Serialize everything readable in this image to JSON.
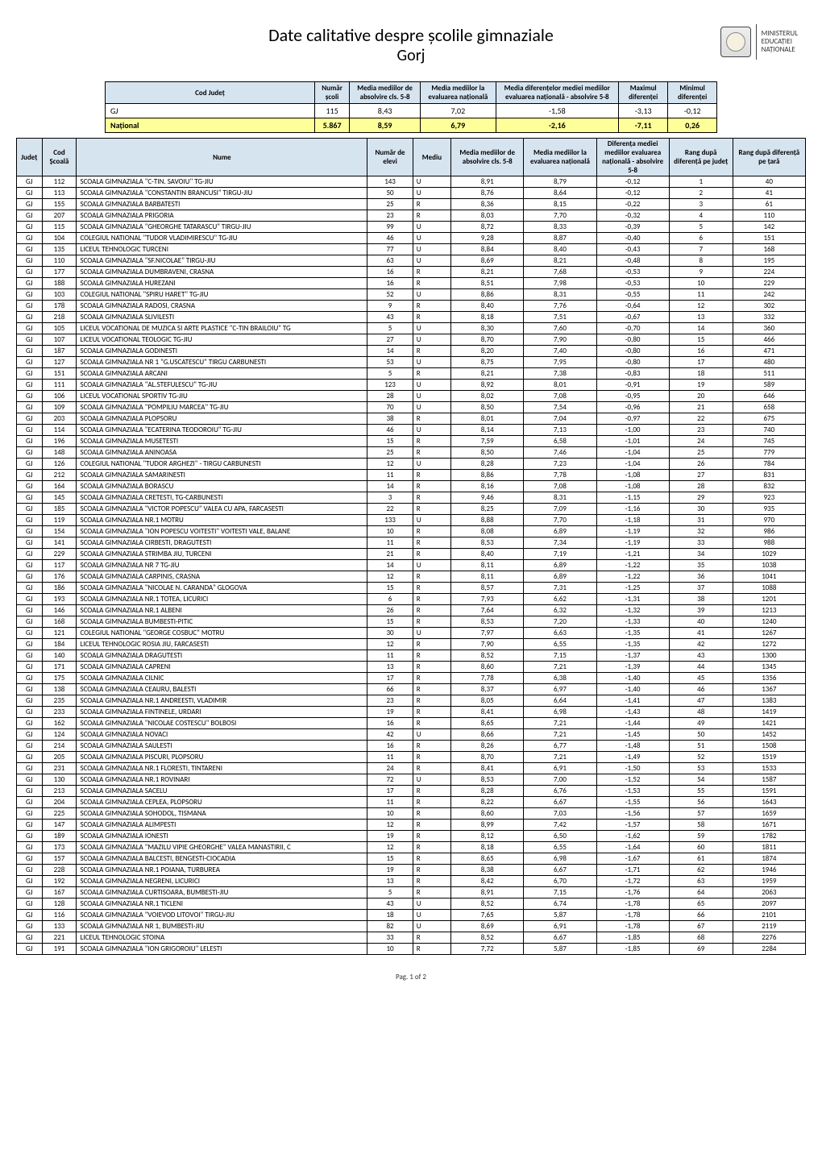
{
  "header": {
    "title": "Date calitative despre școlile gimnaziale",
    "subtitle": "Gorj",
    "ministry_line1": "MINISTERUL",
    "ministry_line2": "EDUCAȚIEI",
    "ministry_line3": "NAȚIONALE"
  },
  "summary": {
    "columns": {
      "cod_judet": "Cod Județ",
      "numar_scoli": "Număr școli",
      "media_abs": "Media mediilor de absolvire cls. 5-8",
      "media_eval": "Media mediilor la evaluarea națională",
      "media_dif": "Media diferențelor mediei mediilor evaluarea națională - absolvire 5-8",
      "max_dif": "Maximul diferenței",
      "min_dif": "Minimul diferenței"
    },
    "rows": [
      {
        "cod": "GJ",
        "scoli": "115",
        "abs": "8,43",
        "eval": "7,02",
        "dif": "-1,58",
        "max": "-3,13",
        "min": "-0,12",
        "hl": false
      },
      {
        "cod": "Național",
        "scoli": "5.867",
        "abs": "8,59",
        "eval": "6,79",
        "dif": "-2,16",
        "max": "-7,11",
        "min": "0,26",
        "hl": true
      }
    ]
  },
  "data": {
    "columns": {
      "judet": "Județ",
      "cod": "Cod Școală",
      "nume": "Nume",
      "elevi": "Număr de elevi",
      "mediu": "Mediu",
      "m_abs": "Media mediilor de absolvire cls. 5-8",
      "m_eval": "Media mediilor la evaluarea națională",
      "dif": "Diferența mediei mediilor evaluarea națională - absolvire 5-8",
      "rang_j": "Rang după diferență pe județ",
      "rang_t": "Rang după diferență pe țară"
    },
    "rows": [
      {
        "j": "GJ",
        "c": "112",
        "n": "SCOALA GIMNAZIALA \"C-TIN. SAVOIU\" TG-JIU",
        "e": "143",
        "m": "U",
        "a": "8,91",
        "v": "8,79",
        "d": "-0,12",
        "rj": "1",
        "rt": "40"
      },
      {
        "j": "GJ",
        "c": "113",
        "n": "SCOALA GIMNAZIALA \"CONSTANTIN BRANCUSI\" TIRGU-JIU",
        "e": "50",
        "m": "U",
        "a": "8,76",
        "v": "8,64",
        "d": "-0,12",
        "rj": "2",
        "rt": "41"
      },
      {
        "j": "GJ",
        "c": "155",
        "n": "SCOALA GIMNAZIALA BARBATESTI",
        "e": "25",
        "m": "R",
        "a": "8,36",
        "v": "8,15",
        "d": "-0,22",
        "rj": "3",
        "rt": "61"
      },
      {
        "j": "GJ",
        "c": "207",
        "n": "SCOALA GIMNAZIALA PRIGORIA",
        "e": "23",
        "m": "R",
        "a": "8,03",
        "v": "7,70",
        "d": "-0,32",
        "rj": "4",
        "rt": "110"
      },
      {
        "j": "GJ",
        "c": "115",
        "n": "SCOALA GIMNAZIALA \"GHEORGHE TATARASCU\" TIRGU-JIU",
        "e": "99",
        "m": "U",
        "a": "8,72",
        "v": "8,33",
        "d": "-0,39",
        "rj": "5",
        "rt": "142"
      },
      {
        "j": "GJ",
        "c": "104",
        "n": "COLEGIUL NATIONAL \"TUDOR VLADIMIRESCU\" TG-JIU",
        "e": "46",
        "m": "U",
        "a": "9,28",
        "v": "8,87",
        "d": "-0,40",
        "rj": "6",
        "rt": "151"
      },
      {
        "j": "GJ",
        "c": "135",
        "n": "LICEUL TEHNOLOGIC TURCENI",
        "e": "77",
        "m": "U",
        "a": "8,84",
        "v": "8,40",
        "d": "-0,43",
        "rj": "7",
        "rt": "168"
      },
      {
        "j": "GJ",
        "c": "110",
        "n": "SCOALA GIMNAZIALA \"SF.NICOLAE\" TIRGU-JIU",
        "e": "63",
        "m": "U",
        "a": "8,69",
        "v": "8,21",
        "d": "-0,48",
        "rj": "8",
        "rt": "195"
      },
      {
        "j": "GJ",
        "c": "177",
        "n": "SCOALA GIMNAZIALA DUMBRAVENI, CRASNA",
        "e": "16",
        "m": "R",
        "a": "8,21",
        "v": "7,68",
        "d": "-0,53",
        "rj": "9",
        "rt": "224"
      },
      {
        "j": "GJ",
        "c": "188",
        "n": "SCOALA GIMNAZIALA HUREZANI",
        "e": "16",
        "m": "R",
        "a": "8,51",
        "v": "7,98",
        "d": "-0,53",
        "rj": "10",
        "rt": "229"
      },
      {
        "j": "GJ",
        "c": "103",
        "n": "COLEGIUL NATIONAL \"SPIRU HARET\" TG-JIU",
        "e": "52",
        "m": "U",
        "a": "8,86",
        "v": "8,31",
        "d": "-0,55",
        "rj": "11",
        "rt": "242"
      },
      {
        "j": "GJ",
        "c": "178",
        "n": "SCOALA GIMNAZIALA RADOSI, CRASNA",
        "e": "9",
        "m": "R",
        "a": "8,40",
        "v": "7,76",
        "d": "-0,64",
        "rj": "12",
        "rt": "302"
      },
      {
        "j": "GJ",
        "c": "218",
        "n": "SCOALA GIMNAZIALA SLIVILESTI",
        "e": "43",
        "m": "R",
        "a": "8,18",
        "v": "7,51",
        "d": "-0,67",
        "rj": "13",
        "rt": "332"
      },
      {
        "j": "GJ",
        "c": "105",
        "n": "LICEUL VOCATIONAL DE MUZICA SI ARTE PLASTICE \"C-TIN BRAILOIU\" TG",
        "e": "5",
        "m": "U",
        "a": "8,30",
        "v": "7,60",
        "d": "-0,70",
        "rj": "14",
        "rt": "360"
      },
      {
        "j": "GJ",
        "c": "107",
        "n": "LICEUL VOCATIONAL TEOLOGIC TG-JIU",
        "e": "27",
        "m": "U",
        "a": "8,70",
        "v": "7,90",
        "d": "-0,80",
        "rj": "15",
        "rt": "466"
      },
      {
        "j": "GJ",
        "c": "187",
        "n": "SCOALA GIMNAZIALA GODINESTI",
        "e": "14",
        "m": "R",
        "a": "8,20",
        "v": "7,40",
        "d": "-0,80",
        "rj": "16",
        "rt": "471"
      },
      {
        "j": "GJ",
        "c": "127",
        "n": "SCOALA GIMNAZIALA NR 1 \"G.USCATESCU\" TIRGU CARBUNESTI",
        "e": "53",
        "m": "U",
        "a": "8,75",
        "v": "7,95",
        "d": "-0,80",
        "rj": "17",
        "rt": "480"
      },
      {
        "j": "GJ",
        "c": "151",
        "n": "SCOALA GIMNAZIALA ARCANI",
        "e": "5",
        "m": "R",
        "a": "8,21",
        "v": "7,38",
        "d": "-0,83",
        "rj": "18",
        "rt": "511"
      },
      {
        "j": "GJ",
        "c": "111",
        "n": "SCOALA GIMNAZIALA \"AL.STEFULESCU\" TG-JIU",
        "e": "123",
        "m": "U",
        "a": "8,92",
        "v": "8,01",
        "d": "-0,91",
        "rj": "19",
        "rt": "589"
      },
      {
        "j": "GJ",
        "c": "106",
        "n": "LICEUL VOCATIONAL SPORTIV TG-JIU",
        "e": "28",
        "m": "U",
        "a": "8,02",
        "v": "7,08",
        "d": "-0,95",
        "rj": "20",
        "rt": "646"
      },
      {
        "j": "GJ",
        "c": "109",
        "n": "SCOALA GIMNAZIALA \"POMPILIU MARCEA\" TG-JIU",
        "e": "70",
        "m": "U",
        "a": "8,50",
        "v": "7,54",
        "d": "-0,96",
        "rj": "21",
        "rt": "658"
      },
      {
        "j": "GJ",
        "c": "203",
        "n": "SCOALA GIMNAZIALA PLOPSORU",
        "e": "38",
        "m": "R",
        "a": "8,01",
        "v": "7,04",
        "d": "-0,97",
        "rj": "22",
        "rt": "675"
      },
      {
        "j": "GJ",
        "c": "114",
        "n": "SCOALA GIMNAZIALA \"ECATERINA TEODOROIU\" TG-JIU",
        "e": "46",
        "m": "U",
        "a": "8,14",
        "v": "7,13",
        "d": "-1,00",
        "rj": "23",
        "rt": "740"
      },
      {
        "j": "GJ",
        "c": "196",
        "n": "SCOALA GIMNAZIALA MUSETESTI",
        "e": "15",
        "m": "R",
        "a": "7,59",
        "v": "6,58",
        "d": "-1,01",
        "rj": "24",
        "rt": "745"
      },
      {
        "j": "GJ",
        "c": "148",
        "n": "SCOALA GIMNAZIALA ANINOASA",
        "e": "25",
        "m": "R",
        "a": "8,50",
        "v": "7,46",
        "d": "-1,04",
        "rj": "25",
        "rt": "779"
      },
      {
        "j": "GJ",
        "c": "126",
        "n": "COLEGIUL NATIONAL \"TUDOR ARGHEZI\" - TIRGU CARBUNESTI",
        "e": "12",
        "m": "U",
        "a": "8,28",
        "v": "7,23",
        "d": "-1,04",
        "rj": "26",
        "rt": "784"
      },
      {
        "j": "GJ",
        "c": "212",
        "n": "SCOALA GIMNAZIALA SAMARINESTI",
        "e": "11",
        "m": "R",
        "a": "8,86",
        "v": "7,78",
        "d": "-1,08",
        "rj": "27",
        "rt": "831"
      },
      {
        "j": "GJ",
        "c": "164",
        "n": "SCOALA GIMNAZIALA BORASCU",
        "e": "14",
        "m": "R",
        "a": "8,16",
        "v": "7,08",
        "d": "-1,08",
        "rj": "28",
        "rt": "832"
      },
      {
        "j": "GJ",
        "c": "145",
        "n": "SCOALA GIMNAZIALA CRETESTI, TG-CARBUNESTI",
        "e": "3",
        "m": "R",
        "a": "9,46",
        "v": "8,31",
        "d": "-1,15",
        "rj": "29",
        "rt": "923"
      },
      {
        "j": "GJ",
        "c": "185",
        "n": "SCOALA GIMNAZIALA \"VICTOR POPESCU\" VALEA CU APA, FARCASESTI",
        "e": "22",
        "m": "R",
        "a": "8,25",
        "v": "7,09",
        "d": "-1,16",
        "rj": "30",
        "rt": "935"
      },
      {
        "j": "GJ",
        "c": "119",
        "n": "SCOALA GIMNAZIALA NR.1 MOTRU",
        "e": "133",
        "m": "U",
        "a": "8,88",
        "v": "7,70",
        "d": "-1,18",
        "rj": "31",
        "rt": "970"
      },
      {
        "j": "GJ",
        "c": "154",
        "n": "SCOALA GIMNAZIALA \"ION POPESCU VOITESTI\" VOITESTI VALE, BALANE",
        "e": "10",
        "m": "R",
        "a": "8,08",
        "v": "6,89",
        "d": "-1,19",
        "rj": "32",
        "rt": "986"
      },
      {
        "j": "GJ",
        "c": "141",
        "n": "SCOALA GIMNAZIALA CIRBESTI, DRAGUTESTI",
        "e": "11",
        "m": "R",
        "a": "8,53",
        "v": "7,34",
        "d": "-1,19",
        "rj": "33",
        "rt": "988"
      },
      {
        "j": "GJ",
        "c": "229",
        "n": "SCOALA GIMNAZIALA STRIMBA JIU, TURCENI",
        "e": "21",
        "m": "R",
        "a": "8,40",
        "v": "7,19",
        "d": "-1,21",
        "rj": "34",
        "rt": "1029"
      },
      {
        "j": "GJ",
        "c": "117",
        "n": "SCOALA GIMNAZIALA NR 7 TG-JIU",
        "e": "14",
        "m": "U",
        "a": "8,11",
        "v": "6,89",
        "d": "-1,22",
        "rj": "35",
        "rt": "1038"
      },
      {
        "j": "GJ",
        "c": "176",
        "n": "SCOALA GIMNAZIALA CARPINIS, CRASNA",
        "e": "12",
        "m": "R",
        "a": "8,11",
        "v": "6,89",
        "d": "-1,22",
        "rj": "36",
        "rt": "1041"
      },
      {
        "j": "GJ",
        "c": "186",
        "n": "SCOALA GIMNAZIALA \"NICOLAE N. CARANDA\" GLOGOVA",
        "e": "15",
        "m": "R",
        "a": "8,57",
        "v": "7,31",
        "d": "-1,25",
        "rj": "37",
        "rt": "1088"
      },
      {
        "j": "GJ",
        "c": "193",
        "n": "SCOALA GIMNAZIALA NR.1 TOTEA, LICURICI",
        "e": "6",
        "m": "R",
        "a": "7,93",
        "v": "6,62",
        "d": "-1,31",
        "rj": "38",
        "rt": "1201"
      },
      {
        "j": "GJ",
        "c": "146",
        "n": "SCOALA GIMNAZIALA NR.1 ALBENI",
        "e": "26",
        "m": "R",
        "a": "7,64",
        "v": "6,32",
        "d": "-1,32",
        "rj": "39",
        "rt": "1213"
      },
      {
        "j": "GJ",
        "c": "168",
        "n": "SCOALA GIMNAZIALA BUMBESTI-PITIC",
        "e": "15",
        "m": "R",
        "a": "8,53",
        "v": "7,20",
        "d": "-1,33",
        "rj": "40",
        "rt": "1240"
      },
      {
        "j": "GJ",
        "c": "121",
        "n": "COLEGIUL NATIONAL \"GEORGE COSBUC\" MOTRU",
        "e": "30",
        "m": "U",
        "a": "7,97",
        "v": "6,63",
        "d": "-1,35",
        "rj": "41",
        "rt": "1267"
      },
      {
        "j": "GJ",
        "c": "184",
        "n": "LICEUL TEHNOLOGIC ROSIA JIU, FARCASESTI",
        "e": "12",
        "m": "R",
        "a": "7,90",
        "v": "6,55",
        "d": "-1,35",
        "rj": "42",
        "rt": "1272"
      },
      {
        "j": "GJ",
        "c": "140",
        "n": "SCOALA GIMNAZIALA DRAGUTESTI",
        "e": "11",
        "m": "R",
        "a": "8,52",
        "v": "7,15",
        "d": "-1,37",
        "rj": "43",
        "rt": "1300"
      },
      {
        "j": "GJ",
        "c": "171",
        "n": "SCOALA GIMNAZIALA CAPRENI",
        "e": "13",
        "m": "R",
        "a": "8,60",
        "v": "7,21",
        "d": "-1,39",
        "rj": "44",
        "rt": "1345"
      },
      {
        "j": "GJ",
        "c": "175",
        "n": "SCOALA GIMNAZIALA CILNIC",
        "e": "17",
        "m": "R",
        "a": "7,78",
        "v": "6,38",
        "d": "-1,40",
        "rj": "45",
        "rt": "1356"
      },
      {
        "j": "GJ",
        "c": "138",
        "n": "SCOALA GIMNAZIALA CEAURU, BALESTI",
        "e": "66",
        "m": "R",
        "a": "8,37",
        "v": "6,97",
        "d": "-1,40",
        "rj": "46",
        "rt": "1367"
      },
      {
        "j": "GJ",
        "c": "235",
        "n": "SCOALA GIMNAZIALA NR.1 ANDREESTI, VLADIMIR",
        "e": "23",
        "m": "R",
        "a": "8,05",
        "v": "6,64",
        "d": "-1,41",
        "rj": "47",
        "rt": "1383"
      },
      {
        "j": "GJ",
        "c": "233",
        "n": "SCOALA GIMNAZIALA FINTINELE, URDARI",
        "e": "19",
        "m": "R",
        "a": "8,41",
        "v": "6,98",
        "d": "-1,43",
        "rj": "48",
        "rt": "1419"
      },
      {
        "j": "GJ",
        "c": "162",
        "n": "SCOALA GIMNAZIALA \"NICOLAE COSTESCU\" BOLBOSI",
        "e": "16",
        "m": "R",
        "a": "8,65",
        "v": "7,21",
        "d": "-1,44",
        "rj": "49",
        "rt": "1421"
      },
      {
        "j": "GJ",
        "c": "124",
        "n": "SCOALA GIMNAZIALA NOVACI",
        "e": "42",
        "m": "U",
        "a": "8,66",
        "v": "7,21",
        "d": "-1,45",
        "rj": "50",
        "rt": "1452"
      },
      {
        "j": "GJ",
        "c": "214",
        "n": "SCOALA GIMNAZIALA SAULESTI",
        "e": "16",
        "m": "R",
        "a": "8,26",
        "v": "6,77",
        "d": "-1,48",
        "rj": "51",
        "rt": "1508"
      },
      {
        "j": "GJ",
        "c": "205",
        "n": "SCOALA GIMNAZIALA PISCURI, PLOPSORU",
        "e": "11",
        "m": "R",
        "a": "8,70",
        "v": "7,21",
        "d": "-1,49",
        "rj": "52",
        "rt": "1519"
      },
      {
        "j": "GJ",
        "c": "231",
        "n": "SCOALA GIMNAZIALA NR.1 FLORESTI, TINTARENI",
        "e": "24",
        "m": "R",
        "a": "8,41",
        "v": "6,91",
        "d": "-1,50",
        "rj": "53",
        "rt": "1533"
      },
      {
        "j": "GJ",
        "c": "130",
        "n": "SCOALA GIMNAZIALA NR.1 ROVINARI",
        "e": "72",
        "m": "U",
        "a": "8,53",
        "v": "7,00",
        "d": "-1,52",
        "rj": "54",
        "rt": "1587"
      },
      {
        "j": "GJ",
        "c": "213",
        "n": "SCOALA GIMNAZIALA SACELU",
        "e": "17",
        "m": "R",
        "a": "8,28",
        "v": "6,76",
        "d": "-1,53",
        "rj": "55",
        "rt": "1591"
      },
      {
        "j": "GJ",
        "c": "204",
        "n": "SCOALA GIMNAZIALA CEPLEA, PLOPSORU",
        "e": "11",
        "m": "R",
        "a": "8,22",
        "v": "6,67",
        "d": "-1,55",
        "rj": "56",
        "rt": "1643"
      },
      {
        "j": "GJ",
        "c": "225",
        "n": "SCOALA GIMNAZIALA SOHODOL, TISMANA",
        "e": "10",
        "m": "R",
        "a": "8,60",
        "v": "7,03",
        "d": "-1,56",
        "rj": "57",
        "rt": "1659"
      },
      {
        "j": "GJ",
        "c": "147",
        "n": "SCOALA GIMNAZIALA ALIMPESTI",
        "e": "12",
        "m": "R",
        "a": "8,99",
        "v": "7,42",
        "d": "-1,57",
        "rj": "58",
        "rt": "1671"
      },
      {
        "j": "GJ",
        "c": "189",
        "n": "SCOALA GIMNAZIALA IONESTI",
        "e": "19",
        "m": "R",
        "a": "8,12",
        "v": "6,50",
        "d": "-1,62",
        "rj": "59",
        "rt": "1782"
      },
      {
        "j": "GJ",
        "c": "173",
        "n": "SCOALA GIMNAZIALA \"MAZILU VIPIE GHEORGHE\" VALEA MANASTIRII, C",
        "e": "12",
        "m": "R",
        "a": "8,18",
        "v": "6,55",
        "d": "-1,64",
        "rj": "60",
        "rt": "1811"
      },
      {
        "j": "GJ",
        "c": "157",
        "n": "SCOALA GIMNAZIALA BALCESTI, BENGESTI-CIOCADIA",
        "e": "15",
        "m": "R",
        "a": "8,65",
        "v": "6,98",
        "d": "-1,67",
        "rj": "61",
        "rt": "1874"
      },
      {
        "j": "GJ",
        "c": "228",
        "n": "SCOALA GIMNAZIALA NR.1 POIANA, TURBUREA",
        "e": "19",
        "m": "R",
        "a": "8,38",
        "v": "6,67",
        "d": "-1,71",
        "rj": "62",
        "rt": "1946"
      },
      {
        "j": "GJ",
        "c": "192",
        "n": "SCOALA GIMNAZIALA NEGRENI, LICURICI",
        "e": "13",
        "m": "R",
        "a": "8,42",
        "v": "6,70",
        "d": "-1,72",
        "rj": "63",
        "rt": "1959"
      },
      {
        "j": "GJ",
        "c": "167",
        "n": "SCOALA GIMNAZIALA CURTISOARA, BUMBESTI-JIU",
        "e": "5",
        "m": "R",
        "a": "8,91",
        "v": "7,15",
        "d": "-1,76",
        "rj": "64",
        "rt": "2063"
      },
      {
        "j": "GJ",
        "c": "128",
        "n": "SCOALA GIMNAZIALA NR.1 TICLENI",
        "e": "43",
        "m": "U",
        "a": "8,52",
        "v": "6,74",
        "d": "-1,78",
        "rj": "65",
        "rt": "2097"
      },
      {
        "j": "GJ",
        "c": "116",
        "n": "SCOALA GIMNAZIALA \"VOIEVOD LITOVOI\" TIRGU-JIU",
        "e": "18",
        "m": "U",
        "a": "7,65",
        "v": "5,87",
        "d": "-1,78",
        "rj": "66",
        "rt": "2101"
      },
      {
        "j": "GJ",
        "c": "133",
        "n": "SCOALA GIMNAZIALA NR 1, BUMBESTI-JIU",
        "e": "82",
        "m": "U",
        "a": "8,69",
        "v": "6,91",
        "d": "-1,78",
        "rj": "67",
        "rt": "2119"
      },
      {
        "j": "GJ",
        "c": "221",
        "n": "LICEUL TEHNOLOGIC STOINA",
        "e": "33",
        "m": "R",
        "a": "8,52",
        "v": "6,67",
        "d": "-1,85",
        "rj": "68",
        "rt": "2276"
      },
      {
        "j": "GJ",
        "c": "191",
        "n": "SCOALA GIMNAZIALA \"ION GRIGOROIU\" LELESTI",
        "e": "10",
        "m": "R",
        "a": "7,72",
        "v": "5,87",
        "d": "-1,85",
        "rj": "69",
        "rt": "2284"
      }
    ]
  },
  "footer": {
    "page": "Pag. 1 of 2"
  },
  "style": {
    "header_bg": "#d6e4f0",
    "highlight_bg": "#ffff99",
    "border": "#000000",
    "title_fontsize": 22,
    "body_fontsize": 9
  }
}
